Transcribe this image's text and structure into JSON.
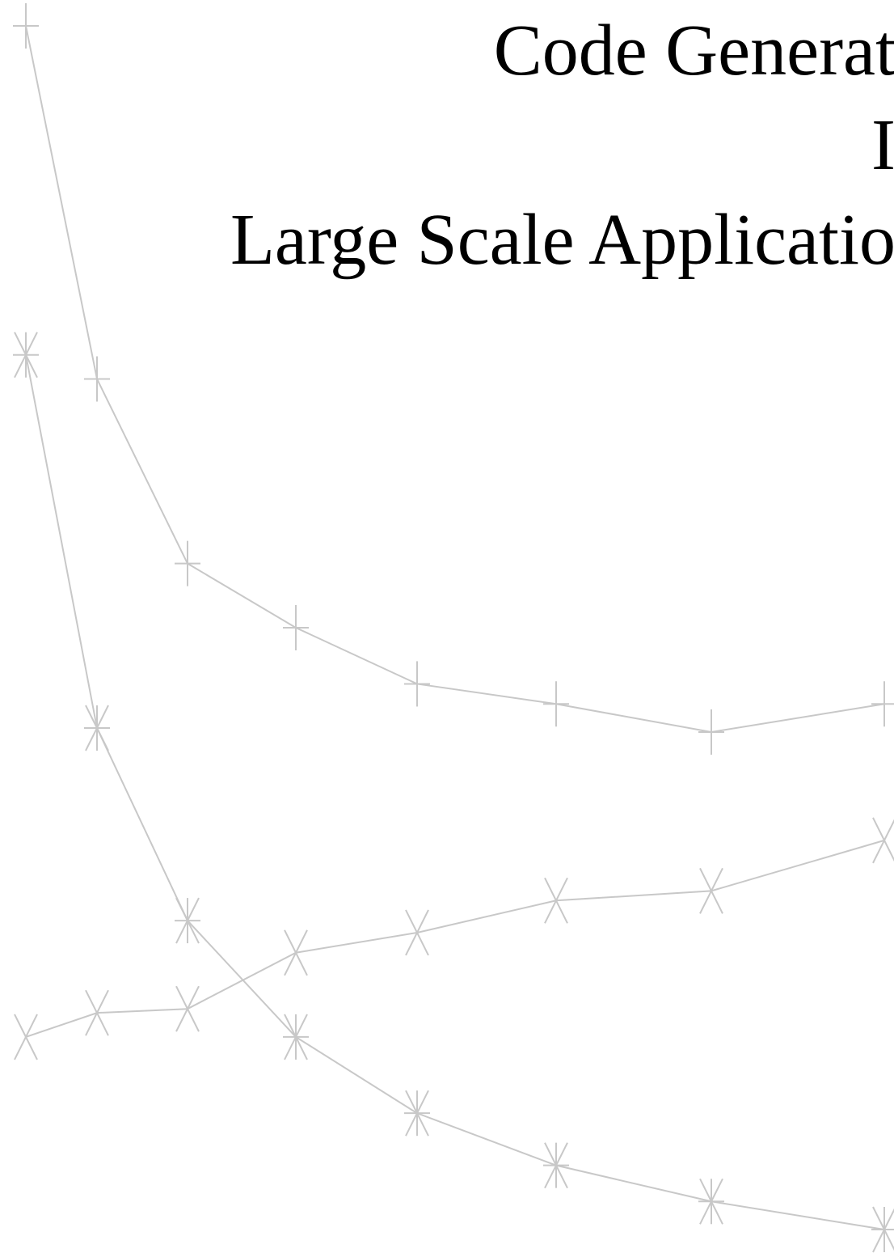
{
  "chart_data": {
    "type": "line",
    "title_lines": [
      "Code Generat",
      "I",
      "Large Scale Applicatio"
    ],
    "x": [
      1,
      2,
      3,
      4,
      5,
      6,
      7,
      8
    ],
    "series": [
      {
        "marker": "plus",
        "values": [
          1.0,
          0.56,
          0.33,
          0.25,
          0.18,
          0.155,
          0.12,
          0.155
        ]
      },
      {
        "marker": "asterisk",
        "values": [
          0.59,
          0.125,
          -0.115,
          -0.26,
          -0.355,
          -0.42,
          -0.465,
          -0.5
        ]
      },
      {
        "marker": "x",
        "values": [
          -0.26,
          -0.23,
          -0.225,
          -0.155,
          -0.13,
          -0.09,
          -0.078,
          -0.015
        ]
      }
    ],
    "ylim": [
      -0.5,
      1.0
    ],
    "grid": false,
    "colors": {
      "series": "#c8c8c8",
      "title": "#000000"
    }
  }
}
